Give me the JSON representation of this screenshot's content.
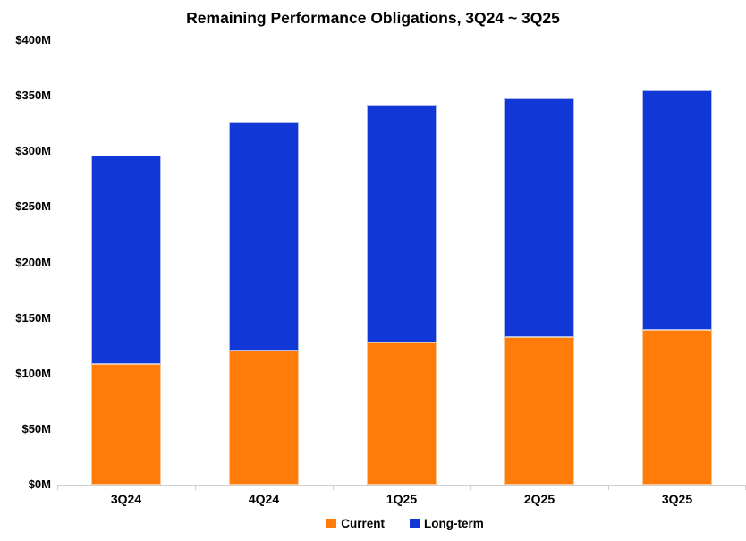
{
  "chart_data": {
    "type": "bar",
    "stacked": true,
    "title": "Remaining Performance Obligations, 3Q24 ~ 3Q25",
    "categories": [
      "3Q24",
      "4Q24",
      "1Q25",
      "2Q25",
      "3Q25"
    ],
    "series": [
      {
        "name": "Current",
        "color": "#FF7C0A",
        "border_color": "#f6c795",
        "values": [
          109,
          121,
          128,
          133,
          139
        ]
      },
      {
        "name": "Long-term",
        "color": "#1138D6",
        "border_color": "#aebbe8",
        "values": [
          187,
          206,
          214,
          215,
          216
        ]
      }
    ],
    "xlabel": "",
    "ylabel": "",
    "ylim": [
      0,
      400
    ],
    "ytick_step": 50,
    "ytick_labels": [
      "$0M",
      "$50M",
      "$100M",
      "$150M",
      "$200M",
      "$250M",
      "$300M",
      "$350M",
      "$400M"
    ],
    "grid": false,
    "legend_position": "bottom",
    "axis_color": "#cfcfcf"
  }
}
